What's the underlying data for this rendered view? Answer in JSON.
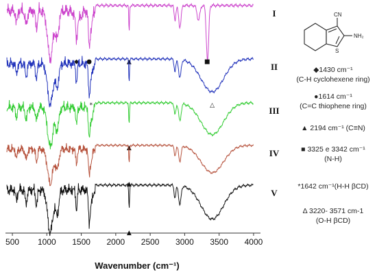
{
  "chart_data": {
    "type": "line",
    "title": "",
    "xlabel": "Wavenumber (cm⁻¹)",
    "ylabel": "",
    "xlim": [
      400,
      4100
    ],
    "xticks": [
      500,
      1000,
      1500,
      2000,
      2500,
      3000,
      3500,
      4000
    ],
    "xtick_labels": [
      "500",
      "1000",
      "1500",
      "2000",
      "2500",
      "3000",
      "3500",
      "4000"
    ],
    "grid": false,
    "series": [
      {
        "name": "I",
        "color": "#cc44cc",
        "markers": [
          {
            "x": 1430,
            "symbol": "◆"
          },
          {
            "x": 1614,
            "symbol": "●"
          },
          {
            "x": 2194,
            "symbol": "▲"
          },
          {
            "x": 3325,
            "symbol": "■"
          }
        ]
      },
      {
        "name": "II",
        "color": "#2233bb",
        "markers": [
          {
            "x": 1642,
            "symbol": "*"
          },
          {
            "x": 3400,
            "symbol": "△"
          }
        ]
      },
      {
        "name": "III",
        "color": "#33cc33",
        "markers": [
          {
            "x": 2194,
            "symbol": "▲"
          }
        ]
      },
      {
        "name": "IV",
        "color": "#b5503a",
        "markers": [
          {
            "x": 2194,
            "symbol": "▲"
          }
        ]
      },
      {
        "name": "V",
        "color": "#111111",
        "markers": [
          {
            "x": 2194,
            "symbol": "▲"
          }
        ]
      }
    ]
  },
  "molecule": {
    "cn_label": "CN",
    "nh2_label": "NH₂",
    "s_label": "S"
  },
  "annotations": [
    "◆1430 cm⁻¹",
    "(C-H cyclohexene ring)",
    "●1614 cm⁻¹",
    "(C=C thiophene ring)",
    "▲ 2194 cm⁻¹ (C≡N)",
    "■ 3325 e 3342 cm⁻¹",
    "(N-H)",
    "*1642 cm⁻¹(H-H βCD)",
    "Δ 3220- 3571 cm-1",
    "(O-H βCD)"
  ]
}
